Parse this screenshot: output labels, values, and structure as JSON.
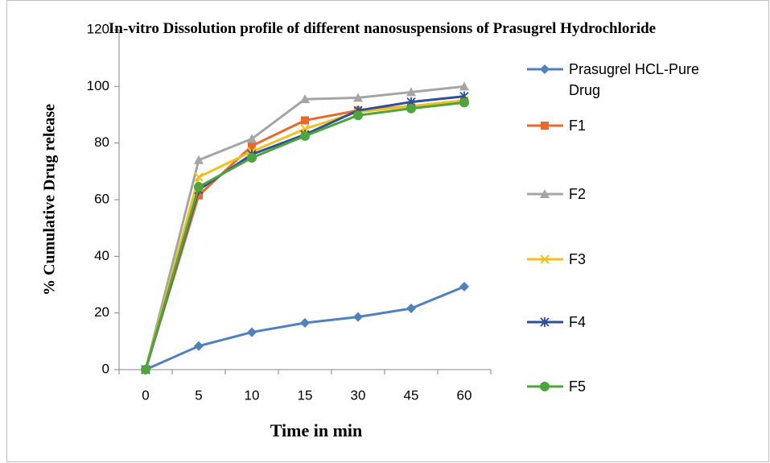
{
  "chart_data": {
    "type": "line",
    "title": "In-vitro Dissolution profile of different nanosuspensions of Prasugrel Hydrochloride",
    "x_label": "Time in min",
    "y_label": "% Cumulative Drug release",
    "categories": [
      "0",
      "5",
      "10",
      "15",
      "30",
      "45",
      "60"
    ],
    "ylim": [
      0,
      120
    ],
    "yticks": [
      0,
      20,
      40,
      60,
      80,
      100,
      120
    ],
    "grid": false,
    "legend": "right",
    "series": [
      {
        "name": "Prasugrel HCL-Pure Drug",
        "color": "#4f81bd",
        "marker": "diamond",
        "values": [
          0,
          8.3,
          13.2,
          16.5,
          18.6,
          21.6,
          29.3
        ]
      },
      {
        "name": "F1",
        "color": "#e8692a",
        "marker": "square",
        "values": [
          0,
          61.5,
          79,
          88,
          91.5,
          93,
          95
        ]
      },
      {
        "name": "F2",
        "color": "#a5a5a5",
        "marker": "triangle",
        "values": [
          0,
          74,
          81.5,
          95.5,
          96,
          98,
          100
        ]
      },
      {
        "name": "F3",
        "color": "#f0c020",
        "marker": "x",
        "values": [
          0,
          68,
          77,
          85,
          91,
          93,
          95
        ]
      },
      {
        "name": "F4",
        "color": "#2e4f9a",
        "marker": "star",
        "values": [
          0,
          63.5,
          76,
          83,
          91.5,
          94.5,
          96.5
        ]
      },
      {
        "name": "F5",
        "color": "#4ea53e",
        "marker": "circle",
        "values": [
          0,
          64.5,
          74.8,
          82.5,
          89.8,
          92.2,
          94.3
        ]
      }
    ]
  }
}
